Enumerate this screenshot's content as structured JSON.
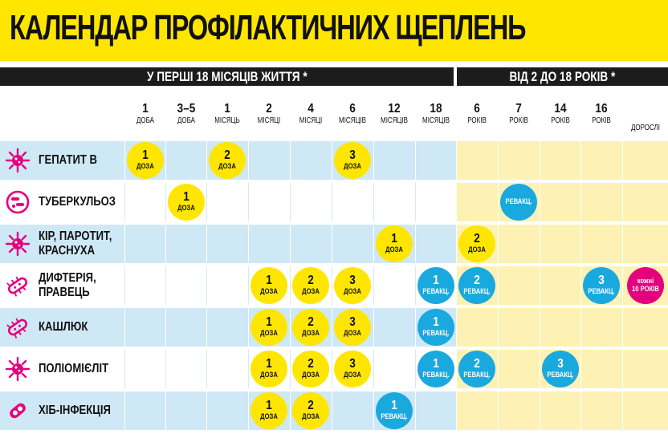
{
  "title": "КАЛЕНДАР ПРОФІЛАКТИЧНИХ ЩЕПЛЕНЬ",
  "sections": [
    {
      "label": "У ПЕРШІ 18 МІСЯЦІВ ЖИТТЯ *"
    },
    {
      "label": "ВІД 2 ДО 18 РОКІВ *"
    }
  ],
  "columns": [
    {
      "num": "1",
      "unit": "доба"
    },
    {
      "num": "3–5",
      "unit": "доба"
    },
    {
      "num": "1",
      "unit": "місяць"
    },
    {
      "num": "2",
      "unit": "місяці"
    },
    {
      "num": "4",
      "unit": "місяці"
    },
    {
      "num": "6",
      "unit": "місяців"
    },
    {
      "num": "12",
      "unit": "місяців"
    },
    {
      "num": "18",
      "unit": "місяців"
    },
    {
      "num": "6",
      "unit": "років"
    },
    {
      "num": "7",
      "unit": "років"
    },
    {
      "num": "14",
      "unit": "років"
    },
    {
      "num": "16",
      "unit": "років"
    },
    {
      "num": "",
      "unit": "дорослі"
    }
  ],
  "colors": {
    "yellow": "#ffe600",
    "blue": "#1aa9df",
    "pink": "#e5007e",
    "light_blue": "#cfe8f6",
    "light_yellow": "#fdf2b4"
  },
  "rows": [
    {
      "name": "ГЕПАТИТ В",
      "icon": "virus-icon",
      "shaded": true,
      "doses": [
        {
          "col": 0,
          "num": "1",
          "label": "доза",
          "color": "yellow"
        },
        {
          "col": 2,
          "num": "2",
          "label": "доза",
          "color": "yellow"
        },
        {
          "col": 5,
          "num": "3",
          "label": "доза",
          "color": "yellow"
        }
      ]
    },
    {
      "name": "ТУБЕРКУЛЬОЗ",
      "icon": "bacteria-icon",
      "shaded": false,
      "doses": [
        {
          "col": 1,
          "num": "1",
          "label": "доза",
          "color": "yellow"
        },
        {
          "col": 9,
          "num": "",
          "label": "ревакц.",
          "color": "blue"
        }
      ]
    },
    {
      "name": "КІР, ПАРОТИТ,\nКРАСНУХА",
      "icon": "virus-icon",
      "shaded": true,
      "doses": [
        {
          "col": 6,
          "num": "1",
          "label": "доза",
          "color": "yellow"
        },
        {
          "col": 8,
          "num": "2",
          "label": "доза",
          "color": "yellow"
        }
      ]
    },
    {
      "name": "ДИФТЕРІЯ,\nПРАВЕЦЬ",
      "icon": "bacillus-icon",
      "shaded": false,
      "doses": [
        {
          "col": 3,
          "num": "1",
          "label": "доза",
          "color": "yellow"
        },
        {
          "col": 4,
          "num": "2",
          "label": "доза",
          "color": "yellow"
        },
        {
          "col": 5,
          "num": "3",
          "label": "доза",
          "color": "yellow"
        },
        {
          "col": 7,
          "num": "1",
          "label": "ревакц.",
          "color": "blue"
        },
        {
          "col": 8,
          "num": "2",
          "label": "ревакц.",
          "color": "blue"
        },
        {
          "col": 11,
          "num": "3",
          "label": "ревакц.",
          "color": "blue"
        },
        {
          "col": 12,
          "num": "кожні",
          "label": "10 років",
          "color": "pink"
        }
      ]
    },
    {
      "name": "КАШЛЮК",
      "icon": "bacillus-icon",
      "shaded": true,
      "doses": [
        {
          "col": 3,
          "num": "1",
          "label": "доза",
          "color": "yellow"
        },
        {
          "col": 4,
          "num": "2",
          "label": "доза",
          "color": "yellow"
        },
        {
          "col": 5,
          "num": "3",
          "label": "доза",
          "color": "yellow"
        },
        {
          "col": 7,
          "num": "1",
          "label": "ревакц.",
          "color": "blue"
        }
      ]
    },
    {
      "name": "ПОЛІОМІЄЛІТ",
      "icon": "virus-icon",
      "shaded": false,
      "doses": [
        {
          "col": 3,
          "num": "1",
          "label": "доза",
          "color": "yellow"
        },
        {
          "col": 4,
          "num": "2",
          "label": "доза",
          "color": "yellow"
        },
        {
          "col": 5,
          "num": "3",
          "label": "доза",
          "color": "yellow"
        },
        {
          "col": 7,
          "num": "1",
          "label": "ревакц.",
          "color": "blue"
        },
        {
          "col": 8,
          "num": "2",
          "label": "ревакц.",
          "color": "blue"
        },
        {
          "col": 10,
          "num": "3",
          "label": "ревакц.",
          "color": "blue"
        }
      ]
    },
    {
      "name": "ХІБ-ІНФЕКЦІЯ",
      "icon": "cell-icon",
      "shaded": true,
      "doses": [
        {
          "col": 3,
          "num": "1",
          "label": "доза",
          "color": "yellow"
        },
        {
          "col": 4,
          "num": "2",
          "label": "доза",
          "color": "yellow"
        },
        {
          "col": 6,
          "num": "1",
          "label": "ревакц.",
          "color": "blue"
        }
      ]
    }
  ]
}
